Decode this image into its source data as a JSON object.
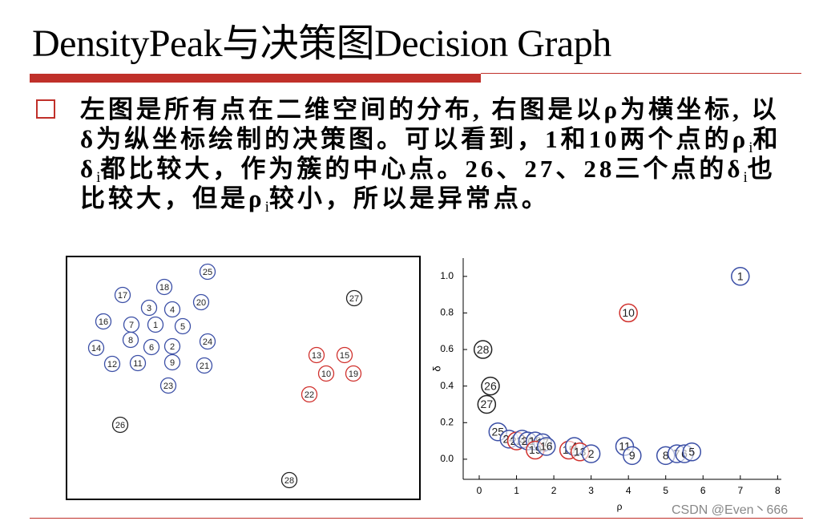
{
  "title": "DensityPeak与决策图Decision Graph",
  "bullet": [
    {
      "text": "左图是所有点在二维空间的分布, 右图是以ρ为横坐标, 以δ为纵坐标绘制的决策图。可以看到，1和10两个点的ρ"
    },
    {
      "sub": "i"
    },
    {
      "text": "和δ"
    },
    {
      "sub": "i"
    },
    {
      "text": "都比较大，作为簇的中心点。26、27、28三个点的δ"
    },
    {
      "sub": "i"
    },
    {
      "text": "也比较大，但是ρ"
    },
    {
      "sub": "i"
    },
    {
      "text": "较小，所以是异常点。"
    }
  ],
  "left_plot": {
    "labels": [
      "25",
      "18",
      "17",
      "3",
      "4",
      "20",
      "16",
      "7",
      "1",
      "5",
      "8",
      "6",
      "2",
      "24",
      "14",
      "12",
      "11",
      "9",
      "21",
      "23",
      "26",
      "28",
      "27",
      "13",
      "15",
      "10",
      "19",
      "22"
    ],
    "colors": [
      "#3b4fa6",
      "#3b4fa6",
      "#3b4fa6",
      "#3b4fa6",
      "#3b4fa6",
      "#3b4fa6",
      "#3b4fa6",
      "#3b4fa6",
      "#3b4fa6",
      "#3b4fa6",
      "#3b4fa6",
      "#3b4fa6",
      "#3b4fa6",
      "#3b4fa6",
      "#3b4fa6",
      "#3b4fa6",
      "#3b4fa6",
      "#3b4fa6",
      "#3b4fa6",
      "#3b4fa6",
      "#222222",
      "#222222",
      "#222222",
      "#d0312d",
      "#d0312d",
      "#d0312d",
      "#d0312d",
      "#d0312d"
    ]
  },
  "chart_data": {
    "type": "scatter",
    "xlabel": "ρ",
    "ylabel": "δ",
    "labels": [
      "1",
      "10",
      "28",
      "26",
      "27",
      "25",
      "24",
      "22",
      "3",
      "20",
      "18",
      "17",
      "19",
      "16",
      "15",
      "4",
      "13",
      "2",
      "11",
      "9",
      "8",
      "7",
      "6",
      "5"
    ],
    "x": [
      7.0,
      4.0,
      0.1,
      0.3,
      0.2,
      0.5,
      0.8,
      1.0,
      1.15,
      1.3,
      1.5,
      1.7,
      1.5,
      1.8,
      2.4,
      2.55,
      2.7,
      3.0,
      3.9,
      4.1,
      5.0,
      5.3,
      5.5,
      5.7
    ],
    "y": [
      1.0,
      0.8,
      0.6,
      0.4,
      0.3,
      0.15,
      0.11,
      0.1,
      0.11,
      0.1,
      0.1,
      0.09,
      0.05,
      0.07,
      0.05,
      0.07,
      0.04,
      0.03,
      0.07,
      0.02,
      0.02,
      0.03,
      0.03,
      0.04
    ],
    "colors": [
      "#3b4fa6",
      "#d0312d",
      "#222222",
      "#222222",
      "#222222",
      "#3b4fa6",
      "#3b4fa6",
      "#d0312d",
      "#3b4fa6",
      "#3b4fa6",
      "#3b4fa6",
      "#3b4fa6",
      "#d0312d",
      "#3b4fa6",
      "#d0312d",
      "#3b4fa6",
      "#d0312d",
      "#3b4fa6",
      "#3b4fa6",
      "#3b4fa6",
      "#3b4fa6",
      "#3b4fa6",
      "#3b4fa6",
      "#3b4fa6"
    ],
    "xlim": [
      -0.43,
      8.1
    ],
    "ylim": [
      -0.11,
      1.1
    ],
    "xticks": [
      0,
      1,
      2,
      3,
      4,
      5,
      6,
      7,
      8
    ],
    "yticks": [
      {
        "value": 0,
        "label": "0.0"
      },
      {
        "value": 0.2,
        "label": "0.2"
      },
      {
        "value": 0.4,
        "label": "0.4"
      },
      {
        "value": 0.6,
        "label": "0.6"
      },
      {
        "value": 0.8,
        "label": "0.8"
      },
      {
        "value": 1,
        "label": "1.0"
      }
    ]
  },
  "watermark": "CSDN @Even丶666"
}
